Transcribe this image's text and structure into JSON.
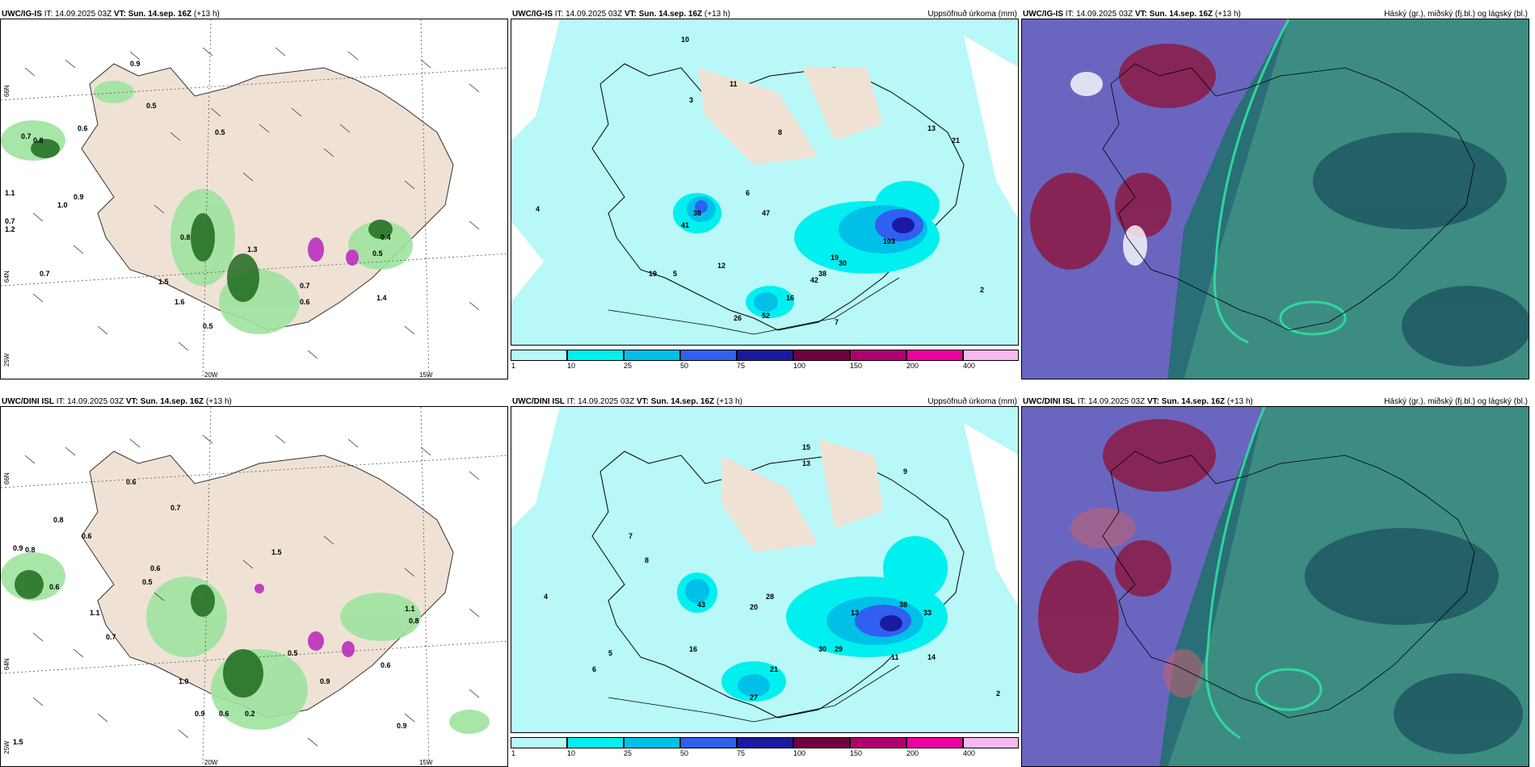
{
  "panels": [
    {
      "id": "p1",
      "model": "UWC/IG-IS",
      "it_label": "IT:",
      "it": "14.09.2025 03Z",
      "vt_label": "VT:",
      "vt": "Sun. 14.sep. 16Z",
      "lead": "(+13 h)",
      "right_title": ""
    },
    {
      "id": "p2",
      "model": "UWC/IG-IS",
      "it_label": "IT:",
      "it": "14.09.2025 03Z",
      "vt_label": "VT:",
      "vt": "Sun. 14.sep. 16Z",
      "lead": "(+13 h)",
      "right_title": "Uppsöfnuð úrkoma (mm)"
    },
    {
      "id": "p3",
      "model": "UWC/IG-IS",
      "it_label": "IT:",
      "it": "14.09.2025 03Z",
      "vt_label": "VT:",
      "vt": "Sun. 14.sep. 16Z",
      "lead": "(+13 h)",
      "right_title": "Háský (gr.), miðský (fj.bl.) og lágský (bl.)"
    },
    {
      "id": "p4",
      "model": "UWC/DINI ISL",
      "it_label": "IT:",
      "it": "14.09.2025 03Z",
      "vt_label": "VT:",
      "vt": "Sun. 14.sep. 16Z",
      "lead": "(+13 h)",
      "right_title": ""
    },
    {
      "id": "p5",
      "model": "UWC/DINI ISL",
      "it_label": "IT:",
      "it": "14.09.2025 03Z",
      "vt_label": "VT:",
      "vt": "Sun. 14.sep. 16Z",
      "lead": "(+13 h)",
      "right_title": "Uppsöfnuð úrkoma (mm)"
    },
    {
      "id": "p6",
      "model": "UWC/DINI ISL",
      "it_label": "IT:",
      "it": "14.09.2025 03Z",
      "vt_label": "VT:",
      "vt": "Sun. 14.sep. 16Z",
      "lead": "(+13 h)",
      "right_title": "Háský (gr.), miðský (fj.bl.) og lágský (bl.)"
    }
  ],
  "grid_labels": {
    "lat_66": "66N",
    "lat_64": "64N",
    "lon_25": "25W",
    "lon_20": "20W",
    "lon_15": "15W"
  },
  "colorbar": {
    "labels": [
      "1",
      "10",
      "25",
      "50",
      "75",
      "100",
      "150",
      "200",
      "400"
    ],
    "colors": [
      "#b8f8f8",
      "#00f0f0",
      "#00c0e8",
      "#3060f0",
      "#1a1aa0",
      "#700040",
      "#b00070",
      "#f000a0",
      "#f8b8f0"
    ]
  },
  "wind_values_top": [
    "0.9",
    "0.5",
    "0.6",
    "0.5",
    "0.7",
    "0.8",
    "1.1",
    "0.9",
    "1.0",
    "0.7",
    "1.2",
    "0.7",
    "0.8",
    "1.5",
    "1.6",
    "0.5",
    "1.3",
    "0.5",
    "0.6",
    "0.7",
    "0.4",
    "1.4"
  ],
  "wind_values_bottom": [
    "0.6",
    "0.7",
    "0.8",
    "0.6",
    "0.9",
    "0.8",
    "1.5",
    "0.6",
    "0.6",
    "0.5",
    "1.1",
    "0.7",
    "1.0",
    "0.9",
    "0.6",
    "0.2",
    "0.9",
    "1.5",
    "0.6",
    "0.8",
    "1.1",
    "0.9",
    "0.5"
  ],
  "precip_values_top": [
    "10",
    "11",
    "3",
    "4",
    "5",
    "6",
    "8",
    "21",
    "19",
    "13",
    "36",
    "47",
    "41",
    "12",
    "19",
    "103",
    "42",
    "30",
    "38",
    "16",
    "26",
    "52",
    "7",
    "2"
  ],
  "precip_values_bottom": [
    "15",
    "13",
    "4",
    "5",
    "6",
    "7",
    "8",
    "28",
    "20",
    "43",
    "16",
    "21",
    "30",
    "38",
    "33",
    "13",
    "29",
    "14",
    "27",
    "11",
    "9",
    "2"
  ]
}
